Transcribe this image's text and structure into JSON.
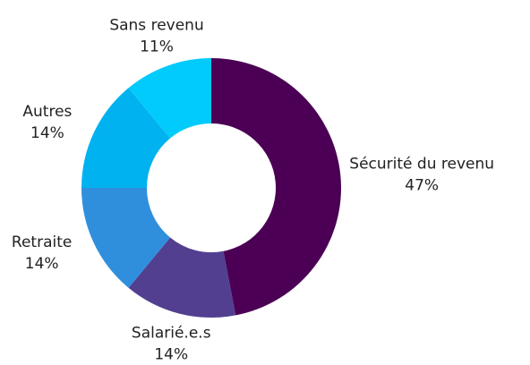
{
  "chart_data": {
    "type": "donut",
    "categories": [
      "Sécurité du revenu",
      "Salarié.e.s",
      "Retraite",
      "Autres",
      "Sans revenu"
    ],
    "values": [
      47,
      14,
      14,
      14,
      11
    ],
    "value_labels": [
      "47%",
      "14%",
      "14%",
      "14%",
      "11%"
    ],
    "colors": [
      "#4b0055",
      "#523f90",
      "#2f8fdd",
      "#00b2ef",
      "#00cbfb"
    ]
  }
}
